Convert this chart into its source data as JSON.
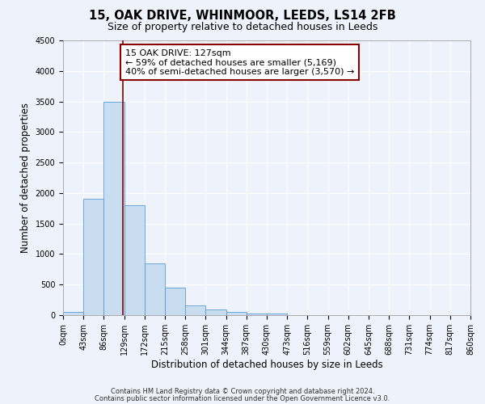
{
  "title": "15, OAK DRIVE, WHINMOOR, LEEDS, LS14 2FB",
  "subtitle": "Size of property relative to detached houses in Leeds",
  "xlabel": "Distribution of detached houses by size in Leeds",
  "ylabel": "Number of detached properties",
  "bin_edges": [
    0,
    43,
    86,
    129,
    172,
    215,
    258,
    301,
    344,
    387,
    430,
    473,
    516,
    559,
    602,
    645,
    688,
    731,
    774,
    817,
    860
  ],
  "bin_values": [
    50,
    1900,
    3500,
    1800,
    850,
    450,
    165,
    95,
    55,
    30,
    20,
    0,
    0,
    0,
    0,
    0,
    0,
    0,
    0,
    0
  ],
  "bar_color": "#c8ddef",
  "bar_edge_color": "#5b9bd5",
  "property_line_x": 127,
  "property_line_color": "#8b0000",
  "annotation_line1": "15 OAK DRIVE: 127sqm",
  "annotation_line2": "← 59% of detached houses are smaller (5,169)",
  "annotation_line3": "40% of semi-detached houses are larger (3,570) →",
  "annotation_box_color": "#8b0000",
  "ylim": [
    0,
    4500
  ],
  "yticks": [
    0,
    500,
    1000,
    1500,
    2000,
    2500,
    3000,
    3500,
    4000,
    4500
  ],
  "background_color": "#eef2fa",
  "grid_color": "#ffffff",
  "footer_line1": "Contains HM Land Registry data © Crown copyright and database right 2024.",
  "footer_line2": "Contains public sector information licensed under the Open Government Licence v3.0.",
  "title_fontsize": 10.5,
  "subtitle_fontsize": 9,
  "axis_label_fontsize": 8.5,
  "tick_fontsize": 7,
  "annotation_fontsize": 8,
  "footer_fontsize": 6
}
